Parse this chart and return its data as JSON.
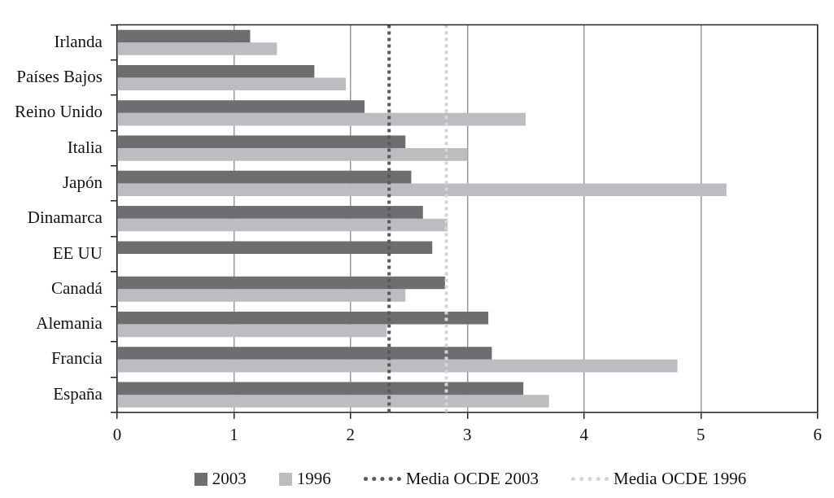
{
  "chart_data": {
    "type": "bar",
    "orientation": "horizontal",
    "categories": [
      "Irlanda",
      "Países Bajos",
      "Reino Unido",
      "Italia",
      "Japón",
      "Dinamarca",
      "EE UU",
      "Canadá",
      "Alemania",
      "Francia",
      "España"
    ],
    "series": [
      {
        "name": "2003",
        "color": "#6d6e70",
        "values": [
          1.14,
          1.69,
          2.12,
          2.47,
          2.52,
          2.62,
          2.7,
          2.81,
          3.18,
          3.21,
          3.48
        ]
      },
      {
        "name": "1996",
        "color": "#bcbdc0",
        "values": [
          1.37,
          1.96,
          3.5,
          3.0,
          5.22,
          2.83,
          null,
          2.47,
          2.31,
          4.8,
          3.7
        ]
      }
    ],
    "ref_lines": [
      {
        "axis": "x",
        "value": 2.33,
        "label": "Media OCDE 2003",
        "color": "#58595b",
        "line_style": "dotted"
      },
      {
        "axis": "x",
        "value": 2.82,
        "label": "Media OCDE 1996",
        "color": "#d4d5d7",
        "line_style": "dotted"
      }
    ],
    "xlim": [
      0,
      6
    ],
    "xticks": [
      0,
      1,
      2,
      3,
      4,
      5,
      6
    ],
    "grid": "x",
    "legend": "bottom"
  }
}
